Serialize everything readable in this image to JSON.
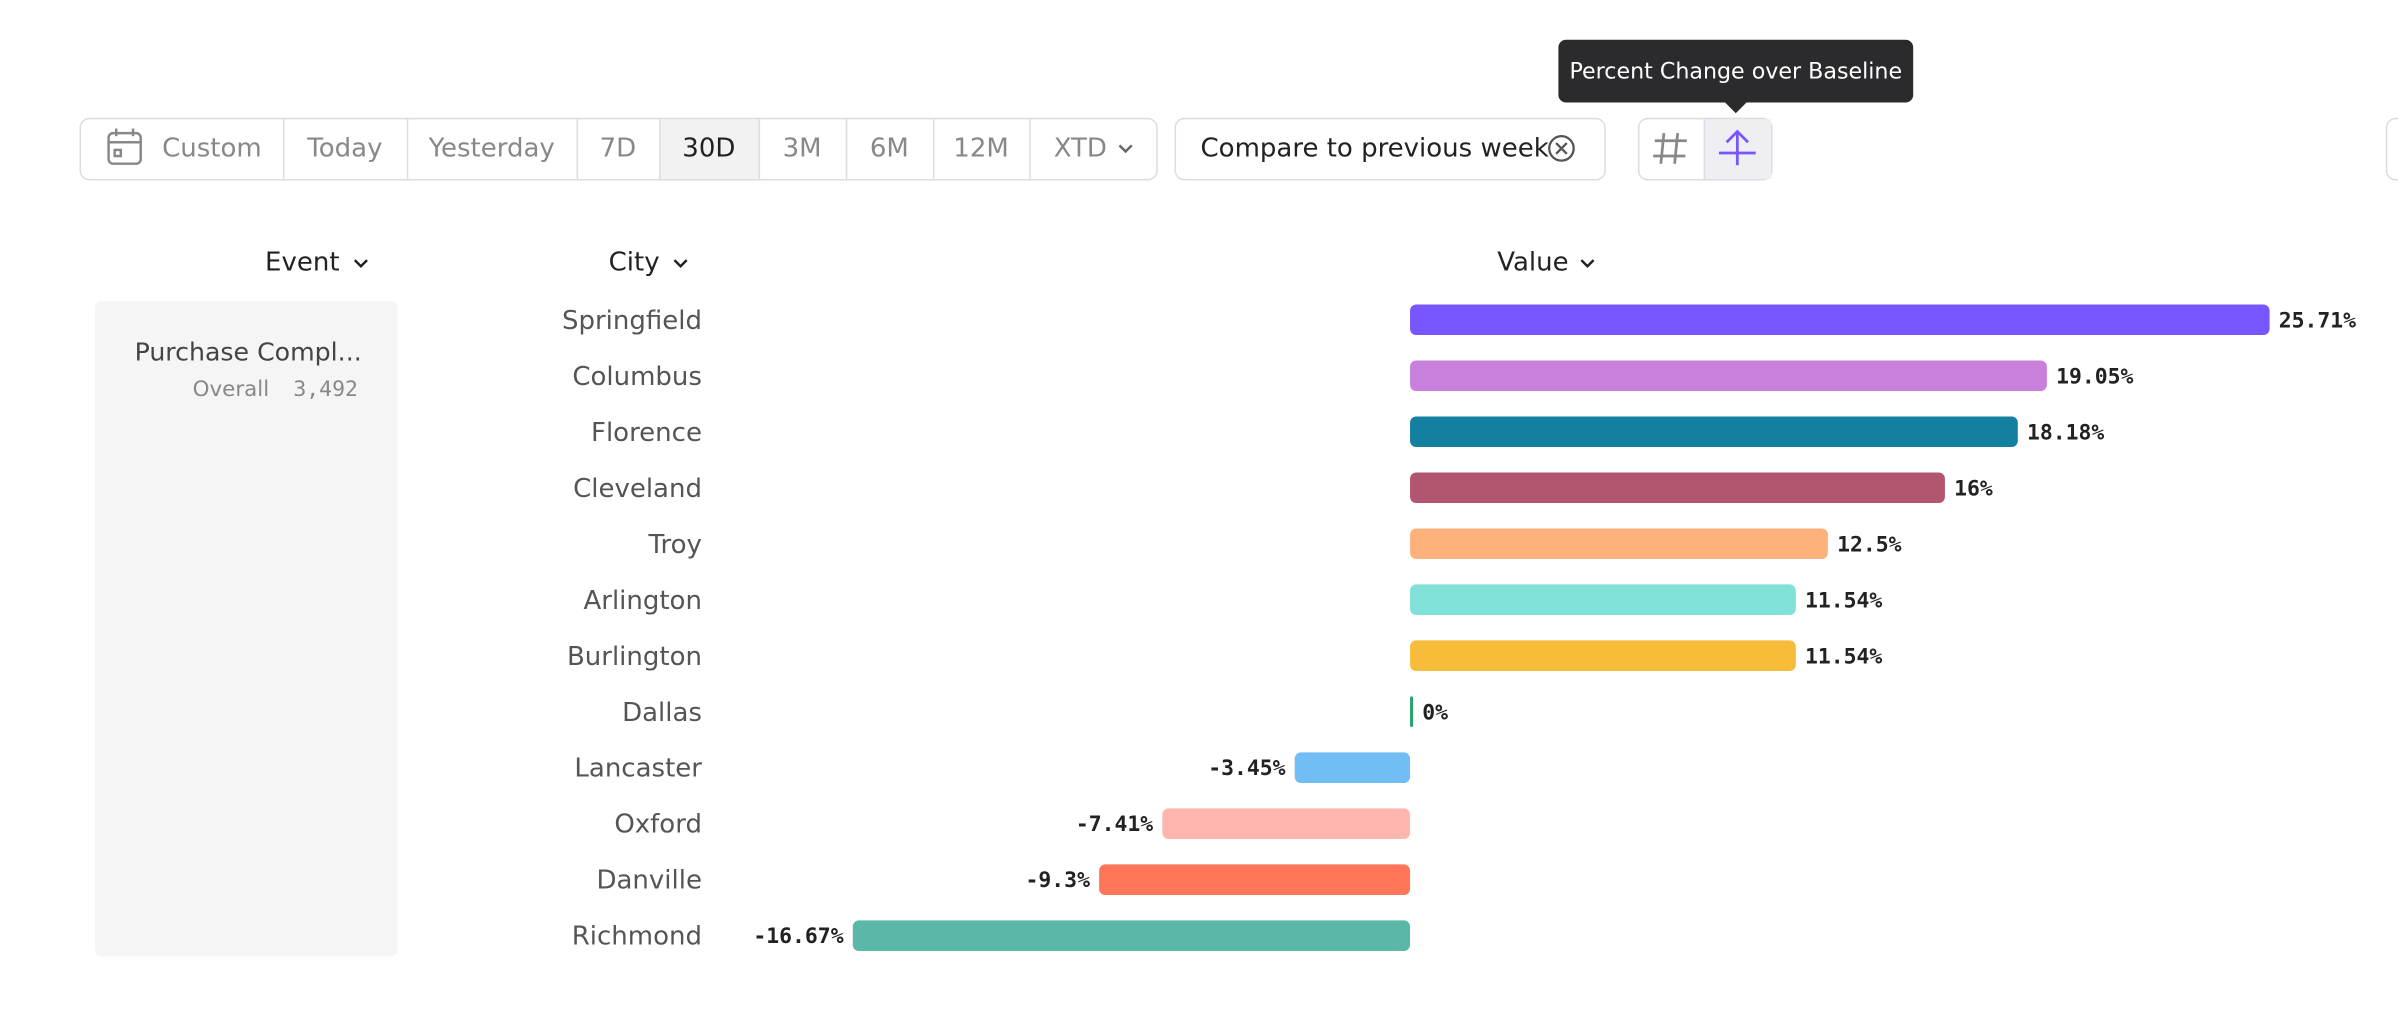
{
  "tooltip": "Percent Change over Baseline",
  "toolbar": {
    "custom": "Custom",
    "ranges": [
      "Today",
      "Yesterday",
      "7D",
      "30D",
      "3M",
      "6M",
      "12M",
      "XTD"
    ],
    "compare": "Compare to previous week"
  },
  "columns": {
    "event": "Event",
    "city": "City",
    "value": "Value"
  },
  "event": {
    "name": "Purchase Compl...",
    "overall_label": "Overall",
    "overall_value": "3,492"
  },
  "chart_data": {
    "type": "bar",
    "orientation": "horizontal",
    "categories": [
      "Springfield",
      "Columbus",
      "Florence",
      "Cleveland",
      "Troy",
      "Arlington",
      "Burlington",
      "Dallas",
      "Lancaster",
      "Oxford",
      "Danville",
      "Richmond"
    ],
    "values": [
      25.71,
      19.05,
      18.18,
      16,
      12.5,
      11.54,
      11.54,
      0,
      -3.45,
      -7.41,
      -9.3,
      -16.67
    ],
    "value_labels": [
      "25.71%",
      "19.05%",
      "18.18%",
      "16%",
      "12.5%",
      "11.54%",
      "11.54%",
      "0%",
      "-3.45%",
      "-7.41%",
      "-9.3%",
      "-16.67%"
    ],
    "colors": [
      "#7856ff",
      "#c980dc",
      "#1380a1",
      "#b2566f",
      "#fdb27b",
      "#80e1d9",
      "#f8bc3b",
      "#27a46c",
      "#72bef4",
      "#ffb6ae",
      "#ff7557",
      "#5bb8a9"
    ]
  }
}
